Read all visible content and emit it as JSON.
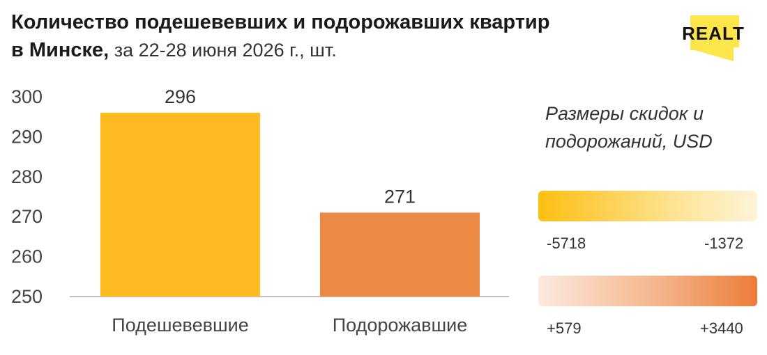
{
  "title": {
    "line1": "Количество подешевевших и подорожавших квартир",
    "line2_bold": "в Минске,",
    "line2_light": " за 22-28 июня 2026 г., шт."
  },
  "logo": {
    "text": "REALT",
    "icon": "realt-logo"
  },
  "colors": {
    "discount_bar": "#fdbb21",
    "rise_bar": "#ec8a45",
    "axis": "#aaaaaa",
    "logo_yellow": "#fde64b"
  },
  "chart_data": {
    "type": "bar",
    "categories": [
      "Подешевевшие",
      "Подорожавшие"
    ],
    "values": [
      296,
      271
    ],
    "data_labels": [
      "296",
      "271"
    ],
    "ylim": [
      250,
      300
    ],
    "yticks": [
      "250",
      "260",
      "270",
      "280",
      "290",
      "300"
    ],
    "grid": false
  },
  "legend": {
    "title": "Размеры скидок и подорожаний, USD",
    "discount": {
      "min": "-5718",
      "max": "-1372"
    },
    "rise": {
      "min": "+579",
      "max": "+3440"
    }
  }
}
